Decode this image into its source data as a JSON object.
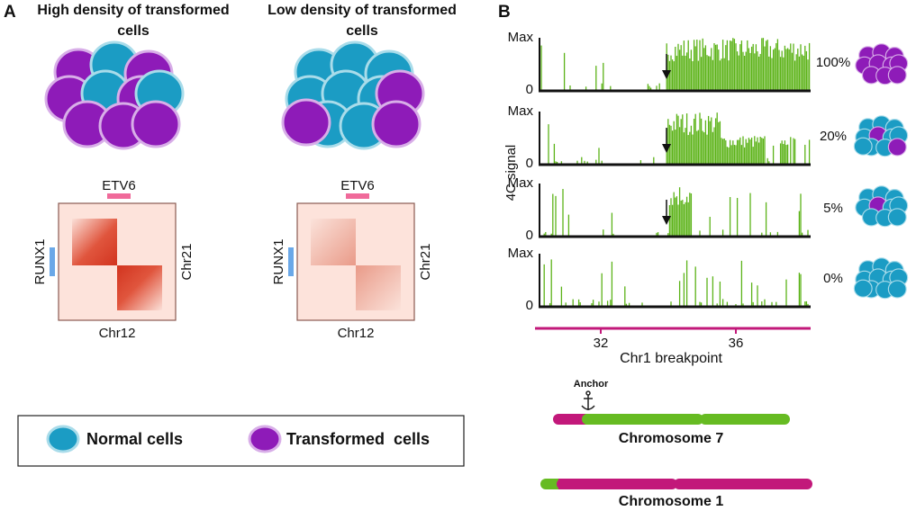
{
  "panel_a": {
    "label": "A",
    "panels": [
      {
        "title": "High density of transformed cells",
        "top_label": "ETV6",
        "left_label": "RUNX1",
        "right_label": "Chr21",
        "bottom_label": "Chr12"
      },
      {
        "title": "Low density of transformed cells",
        "top_label": "ETV6",
        "left_label": "RUNX1",
        "right_label": "Chr21",
        "bottom_label": "Chr12"
      }
    ],
    "legend": [
      "Normal cells",
      "Transformed  cells"
    ]
  },
  "panel_b": {
    "label": "B",
    "y_axis_label": "4C signal",
    "tracks": [
      {
        "max": "Max",
        "zero": "0",
        "percent": "100%"
      },
      {
        "max": "Max",
        "zero": "0",
        "percent": "20%"
      },
      {
        "max": "Max",
        "zero": "0",
        "percent": "5%"
      },
      {
        "max": "Max",
        "zero": "0",
        "percent": "0%"
      }
    ],
    "x_ticks": [
      "32",
      "36"
    ],
    "x_axis_label": "Chr1 breakpoint",
    "anchor": "Anchor",
    "chromosomes": [
      "Chromosome 7",
      "Chromosome 1"
    ]
  }
}
